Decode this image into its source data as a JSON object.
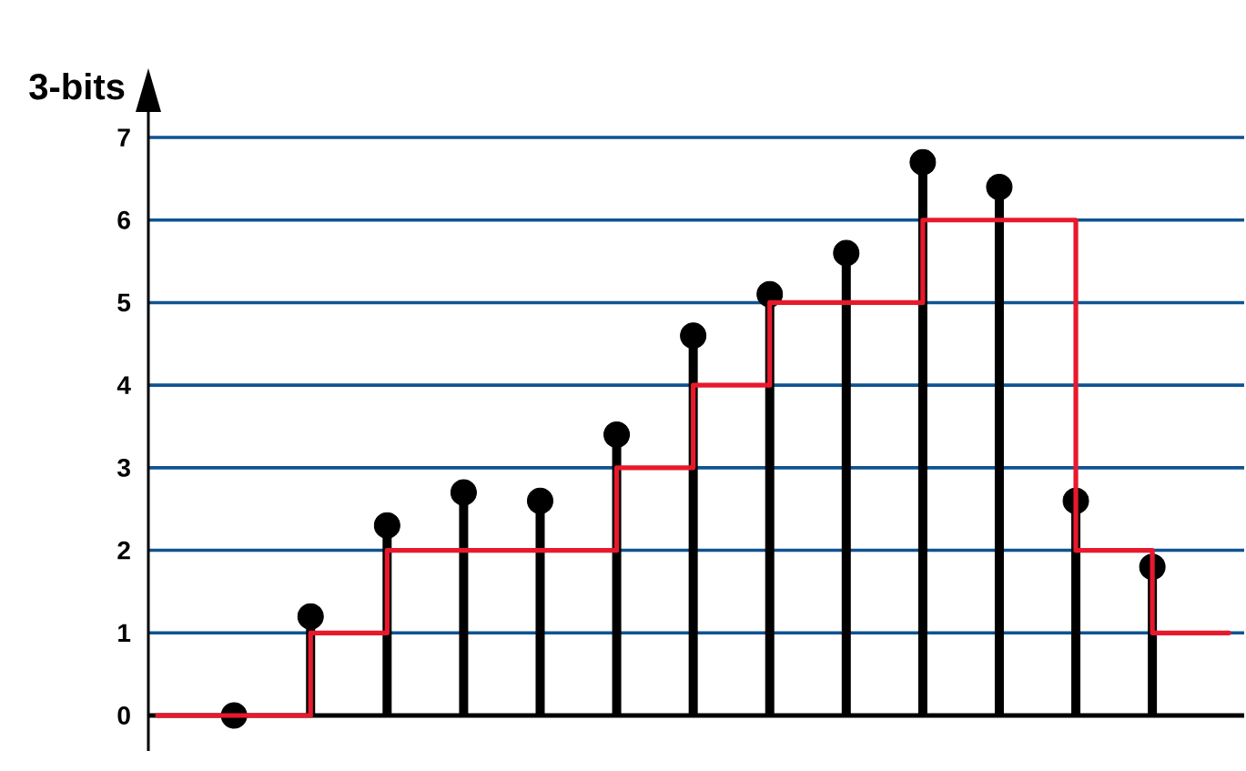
{
  "chart_data": {
    "type": "lollipop",
    "ylabel": "3-bits",
    "categories": [
      null,
      null,
      null,
      null,
      null,
      null,
      null,
      null,
      null,
      null,
      null,
      null,
      null,
      null,
      null
    ],
    "ylim": [
      -0.43,
      7.75
    ],
    "yticks": [
      0,
      1,
      2,
      3,
      4,
      5,
      6,
      7
    ],
    "grid": "y",
    "marker": "circle",
    "series": [
      {
        "color": "#000000",
        "values": [
          null,
          0,
          1.2,
          2.3,
          2.7,
          2.6,
          3.4,
          4.6,
          5.1,
          5.6,
          6.7,
          6.4,
          2.6,
          1.8,
          null
        ]
      },
      {
        "type": "step",
        "color": "#e8192c",
        "marker": "none",
        "values": [
          0,
          0,
          1,
          2,
          2,
          2,
          3,
          4,
          5,
          5,
          6,
          6,
          2,
          1,
          1
        ]
      }
    ]
  }
}
